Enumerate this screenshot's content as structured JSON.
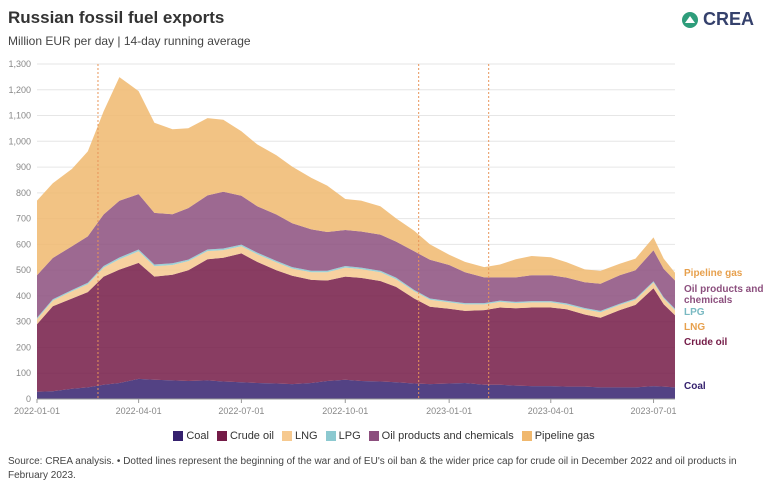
{
  "header": {
    "title": "Russian fossil fuel exports",
    "subtitle": "Million EUR per day | 14-day running average",
    "logo_text": "CREA"
  },
  "footer": {
    "source": "Source: CREA analysis. • Dotted lines represent the beginning of the war and of EU's oil ban & the wider price cap for crude oil in December 2022 and oil products in February 2023."
  },
  "legend": [
    {
      "label": "Coal",
      "color": "#35216e"
    },
    {
      "label": "Crude oil",
      "color": "#741b47"
    },
    {
      "label": "LNG",
      "color": "#f6c98f"
    },
    {
      "label": "LPG",
      "color": "#8cc9d0"
    },
    {
      "label": "Oil products and chemicals",
      "color": "#8c4f7e"
    },
    {
      "label": "Pipeline gas",
      "color": "#f0b86e"
    }
  ],
  "chart_data": {
    "type": "area",
    "stacked": true,
    "ylim": [
      0,
      1300
    ],
    "yticks": [
      "0",
      "100",
      "200",
      "300",
      "400",
      "500",
      "600",
      "700",
      "800",
      "900",
      "1,000",
      "1,100",
      "1,200",
      "1,300"
    ],
    "xlim": [
      "2022-01-01",
      "2023-07-20"
    ],
    "xticks": [
      "2022-01-01",
      "2022-04-01",
      "2022-07-01",
      "2022-10-01",
      "2023-01-01",
      "2023-04-01",
      "2023-07-01"
    ],
    "reference_lines": [
      "2022-02-24",
      "2022-12-05",
      "2023-02-05"
    ],
    "x": [
      "2022-01-01",
      "2022-01-15",
      "2022-02-01",
      "2022-02-15",
      "2022-03-01",
      "2022-03-15",
      "2022-04-01",
      "2022-04-15",
      "2022-05-01",
      "2022-05-15",
      "2022-06-01",
      "2022-06-15",
      "2022-07-01",
      "2022-07-15",
      "2022-08-01",
      "2022-08-15",
      "2022-09-01",
      "2022-09-15",
      "2022-10-01",
      "2022-10-15",
      "2022-11-01",
      "2022-11-15",
      "2022-12-01",
      "2022-12-15",
      "2023-01-01",
      "2023-01-15",
      "2023-02-01",
      "2023-02-15",
      "2023-03-01",
      "2023-03-15",
      "2023-04-01",
      "2023-04-15",
      "2023-05-01",
      "2023-05-15",
      "2023-06-01",
      "2023-06-15",
      "2023-07-01",
      "2023-07-10",
      "2023-07-20"
    ],
    "series": [
      {
        "name": "Coal",
        "color": "#35216e",
        "values": [
          28,
          30,
          40,
          45,
          55,
          62,
          78,
          75,
          72,
          70,
          72,
          68,
          65,
          62,
          60,
          58,
          62,
          70,
          75,
          70,
          68,
          65,
          60,
          58,
          60,
          62,
          55,
          55,
          52,
          50,
          50,
          48,
          48,
          45,
          45,
          45,
          50,
          48,
          45
        ]
      },
      {
        "name": "Crude oil",
        "color": "#741b47",
        "values": [
          262,
          330,
          350,
          370,
          420,
          440,
          450,
          400,
          410,
          430,
          470,
          480,
          500,
          470,
          440,
          420,
          400,
          390,
          400,
          400,
          390,
          370,
          330,
          300,
          290,
          280,
          290,
          300,
          300,
          305,
          305,
          300,
          280,
          270,
          300,
          320,
          380,
          320,
          280
        ]
      },
      {
        "name": "LNG",
        "color": "#f6c98f",
        "values": [
          20,
          22,
          28,
          30,
          35,
          40,
          45,
          40,
          38,
          35,
          32,
          30,
          28,
          30,
          30,
          28,
          30,
          32,
          35,
          34,
          34,
          30,
          28,
          27,
          25,
          25,
          22,
          22,
          20,
          20,
          20,
          18,
          20,
          22,
          20,
          20,
          22,
          22,
          20
        ]
      },
      {
        "name": "LPG",
        "color": "#8cc9d0",
        "values": [
          5,
          5,
          5,
          6,
          6,
          7,
          7,
          7,
          7,
          6,
          6,
          6,
          6,
          6,
          6,
          6,
          6,
          6,
          6,
          6,
          6,
          6,
          5,
          5,
          5,
          5,
          5,
          5,
          5,
          5,
          5,
          5,
          5,
          5,
          5,
          5,
          5,
          5,
          5
        ]
      },
      {
        "name": "Oil products and chemicals",
        "color": "#8c4f7e",
        "values": [
          165,
          160,
          170,
          180,
          200,
          220,
          215,
          200,
          190,
          200,
          210,
          220,
          190,
          180,
          180,
          170,
          160,
          150,
          140,
          140,
          140,
          140,
          150,
          150,
          140,
          120,
          100,
          90,
          95,
          100,
          100,
          100,
          100,
          105,
          110,
          110,
          120,
          110,
          110
        ]
      },
      {
        "name": "Pipeline gas",
        "color": "#f0b86e",
        "values": [
          290,
          290,
          300,
          330,
          400,
          480,
          400,
          350,
          330,
          310,
          300,
          280,
          250,
          240,
          230,
          220,
          200,
          180,
          120,
          120,
          110,
          90,
          80,
          60,
          40,
          40,
          40,
          50,
          70,
          75,
          70,
          60,
          50,
          50,
          45,
          45,
          50,
          40,
          30
        ]
      }
    ],
    "end_labels": [
      {
        "label": "Pipeline gas",
        "color": "#e7a04d"
      },
      {
        "label": "Oil products and chemicals",
        "color": "#8c4f7e"
      },
      {
        "label": "LPG",
        "color": "#79b9c2"
      },
      {
        "label": "LNG",
        "color": "#e7a04d"
      },
      {
        "label": "Crude oil",
        "color": "#741b47"
      },
      {
        "label": "Coal",
        "color": "#35216e"
      }
    ]
  }
}
